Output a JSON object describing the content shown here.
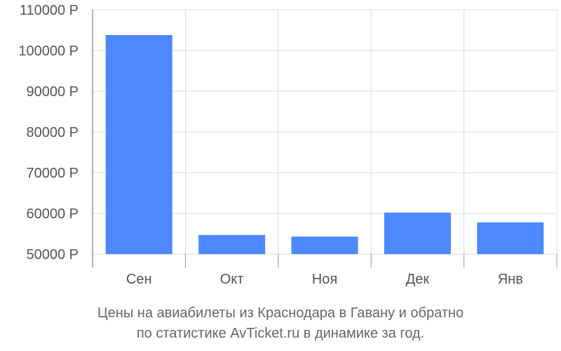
{
  "chart_data": {
    "type": "bar",
    "categories": [
      "Сен",
      "Окт",
      "Ноя",
      "Дек",
      "Янв"
    ],
    "values": [
      103800,
      54700,
      54300,
      60200,
      57800
    ],
    "ylim": [
      50000,
      110000
    ],
    "yticks": [
      50000,
      60000,
      70000,
      80000,
      90000,
      100000,
      110000
    ],
    "ytick_labels": [
      "50000 Р",
      "60000 Р",
      "70000 Р",
      "80000 Р",
      "90000 Р",
      "100000 Р",
      "110000 Р"
    ],
    "grid": true,
    "bar_color": "#4d88ff",
    "grid_color": "#dddddd",
    "axis_color": "#999999"
  },
  "caption": {
    "line1": "Цены на авиабилеты из Краснодара в Гавану и обратно",
    "line2": "по статистике AvTicket.ru в динамике за год."
  }
}
